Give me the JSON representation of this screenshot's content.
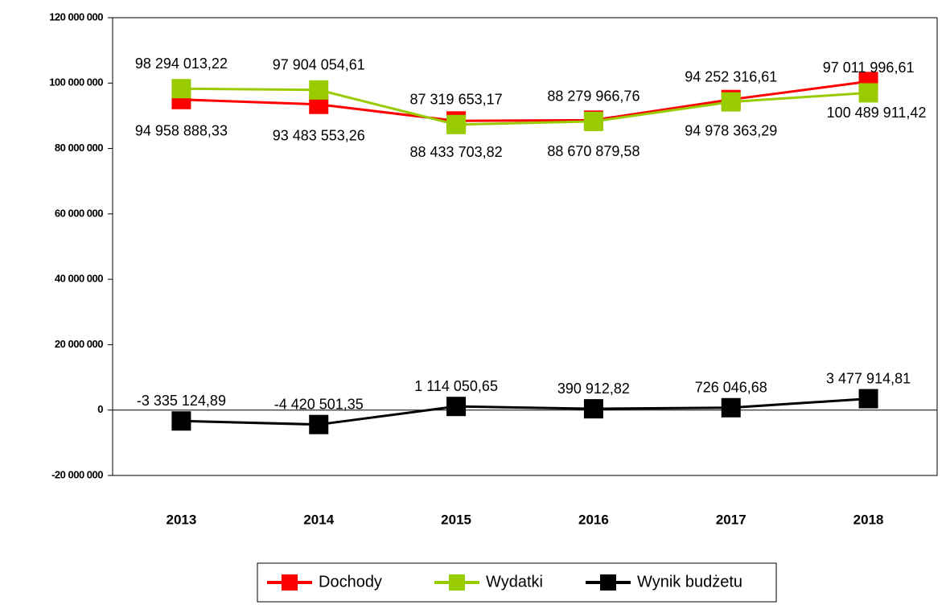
{
  "chart_data": {
    "type": "line",
    "categories": [
      "2013",
      "2014",
      "2015",
      "2016",
      "2017",
      "2018"
    ],
    "series": [
      {
        "name": "Dochody",
        "color": "#ff0000",
        "values": [
          94958888.33,
          93483553.26,
          88433703.82,
          88670879.58,
          94978363.29,
          100489911.42
        ],
        "value_labels": [
          "94 958 888,33",
          "93 483 553,26",
          "88 433 703,82",
          "88 670 879,58",
          "94 978 363,29",
          "100 489 911,42"
        ]
      },
      {
        "name": "Wydatki",
        "color": "#99cc00",
        "values": [
          98294013.22,
          97904054.61,
          87319653.17,
          88279966.76,
          94252316.61,
          97011996.61
        ],
        "value_labels": [
          "98 294 013,22",
          "97 904 054,61",
          "87 319 653,17",
          "88 279 966,76",
          "94 252 316,61",
          "97 011 996,61"
        ]
      },
      {
        "name": "Wynik budżetu",
        "color": "#000000",
        "values": [
          -3335124.89,
          -4420501.35,
          1114050.65,
          390912.82,
          726046.68,
          3477914.81
        ],
        "value_labels": [
          "-3 335 124,89",
          "-4 420 501,35",
          "1 114 050,65",
          "390 912,82",
          "726 046,68",
          "3 477 914,81"
        ]
      }
    ],
    "ylim": [
      -20000000,
      120000000
    ],
    "yticks": [
      {
        "value": -20000000,
        "label": "-20 000 000"
      },
      0,
      {
        "value": 20000000,
        "label": "20 000 000"
      },
      {
        "value": 40000000,
        "label": "40 000 000"
      },
      {
        "value": 60000000,
        "label": "60 000 000"
      },
      {
        "value": 80000000,
        "label": "80 000 000"
      },
      {
        "value": 100000000,
        "label": "100 000 000"
      },
      {
        "value": 120000000,
        "label": "120 000 000"
      }
    ],
    "legend": "bottom"
  }
}
